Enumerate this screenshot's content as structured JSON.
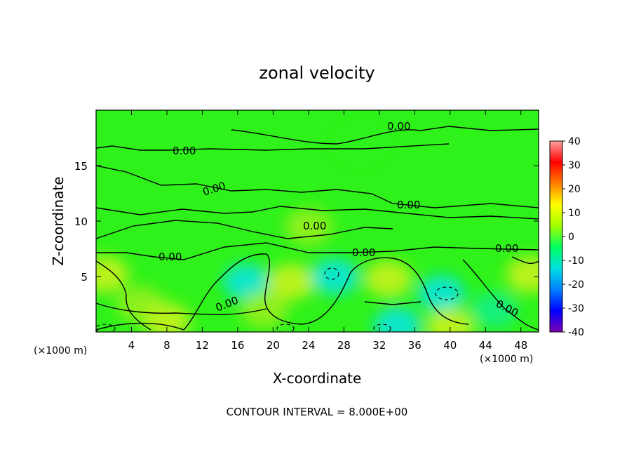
{
  "chart_data": {
    "type": "heatmap",
    "title": "zonal velocity",
    "xlabel": "X-coordinate",
    "ylabel": "Z-coordinate",
    "x_unit": "(×1000 m)",
    "z_unit": "(×1000 m)",
    "xlim": [
      0,
      50
    ],
    "ylim": [
      0,
      20
    ],
    "x_ticks": [
      4,
      8,
      12,
      16,
      20,
      24,
      28,
      32,
      36,
      40,
      44,
      48
    ],
    "y_ticks": [
      5,
      10,
      15
    ],
    "colorbar": {
      "range": [
        -40,
        40
      ],
      "ticks": [
        40,
        30,
        20,
        10,
        0,
        -10,
        -20,
        -30,
        -40
      ],
      "colors": [
        "#7a00b0",
        "#0000ff",
        "#0080ff",
        "#00e0e0",
        "#00ff60",
        "#a0ff00",
        "#ffff00",
        "#ff8000",
        "#ff0000",
        "#ffa0a0"
      ]
    },
    "contour_interval_text": "CONTOUR INTERVAL = 8.000E+00",
    "contour_labels": [
      "0.00",
      "0.00",
      "0.00",
      "0.00",
      "0.00",
      "0.00",
      "0.00",
      "0.00",
      "0.00",
      "0.00"
    ],
    "background_value": 0,
    "features": [
      {
        "x": 1,
        "z": 5.2,
        "value": 8
      },
      {
        "x": 5,
        "z": 2.5,
        "value": 5
      },
      {
        "x": 8,
        "z": 1.0,
        "value": 6
      },
      {
        "x": 17,
        "z": 4.5,
        "value": -6
      },
      {
        "x": 19,
        "z": 2.0,
        "value": 5
      },
      {
        "x": 22,
        "z": 4.5,
        "value": 6
      },
      {
        "x": 27,
        "z": 5.0,
        "value": -8
      },
      {
        "x": 33,
        "z": 4.8,
        "value": 7
      },
      {
        "x": 34,
        "z": 0.6,
        "value": -8
      },
      {
        "x": 39,
        "z": 3.5,
        "value": -8
      },
      {
        "x": 40,
        "z": 0.5,
        "value": 7
      },
      {
        "x": 49,
        "z": 5.2,
        "value": 6
      },
      {
        "x": 45,
        "z": 2.0,
        "value": -3
      },
      {
        "x": 24,
        "z": 9.5,
        "value": 3
      },
      {
        "x": 30,
        "z": 17,
        "value": 2
      }
    ]
  }
}
